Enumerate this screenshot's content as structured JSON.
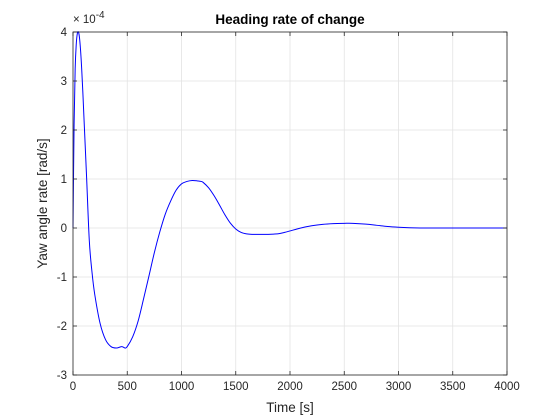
{
  "chart_data": {
    "type": "line",
    "title": "Heading rate of change",
    "xlabel": "Time [s]",
    "ylabel": "Yaw angle rate [rad/s]",
    "y_exponent_base": "× 10",
    "y_exponent_power": "-4",
    "xlim": [
      0,
      4000
    ],
    "ylim": [
      -3,
      4
    ],
    "x_ticks": [
      0,
      500,
      1000,
      1500,
      2000,
      2500,
      3000,
      3500,
      4000
    ],
    "y_ticks": [
      -3,
      -2,
      -1,
      0,
      1,
      2,
      3,
      4
    ],
    "grid": true,
    "series": [
      {
        "color": "#0000ff",
        "x": [
          0,
          10,
          20,
          30,
          40,
          50,
          60,
          70,
          80,
          90,
          100,
          125,
          150,
          175,
          200,
          250,
          300,
          350,
          400,
          450,
          480,
          500,
          550,
          600,
          650,
          700,
          750,
          800,
          850,
          900,
          950,
          1000,
          1050,
          1100,
          1150,
          1180,
          1200,
          1250,
          1300,
          1350,
          1400,
          1450,
          1500,
          1550,
          1600,
          1650,
          1700,
          1750,
          1800,
          1850,
          1900,
          1950,
          2000,
          2100,
          2200,
          2300,
          2400,
          2500,
          2580,
          2700,
          2800,
          2900,
          3000,
          3100,
          3200,
          3300,
          3400,
          3500,
          3600,
          3700,
          3800,
          3900,
          4000
        ],
        "values": [
          0,
          2.1,
          3.25,
          3.75,
          3.97,
          4.0,
          3.88,
          3.62,
          3.25,
          2.8,
          2.3,
          1.05,
          -0.25,
          -0.9,
          -1.35,
          -1.95,
          -2.28,
          -2.42,
          -2.45,
          -2.42,
          -2.45,
          -2.42,
          -2.22,
          -1.9,
          -1.45,
          -0.98,
          -0.5,
          -0.08,
          0.28,
          0.55,
          0.77,
          0.9,
          0.95,
          0.97,
          0.96,
          0.95,
          0.93,
          0.82,
          0.66,
          0.47,
          0.27,
          0.1,
          -0.02,
          -0.09,
          -0.12,
          -0.13,
          -0.13,
          -0.13,
          -0.13,
          -0.125,
          -0.115,
          -0.09,
          -0.06,
          0.0,
          0.045,
          0.075,
          0.09,
          0.095,
          0.095,
          0.08,
          0.055,
          0.03,
          0.015,
          0.005,
          0.0,
          0.0,
          0.0,
          0.0,
          0.0,
          0.0,
          0.0,
          0.0,
          0.0
        ]
      }
    ]
  }
}
